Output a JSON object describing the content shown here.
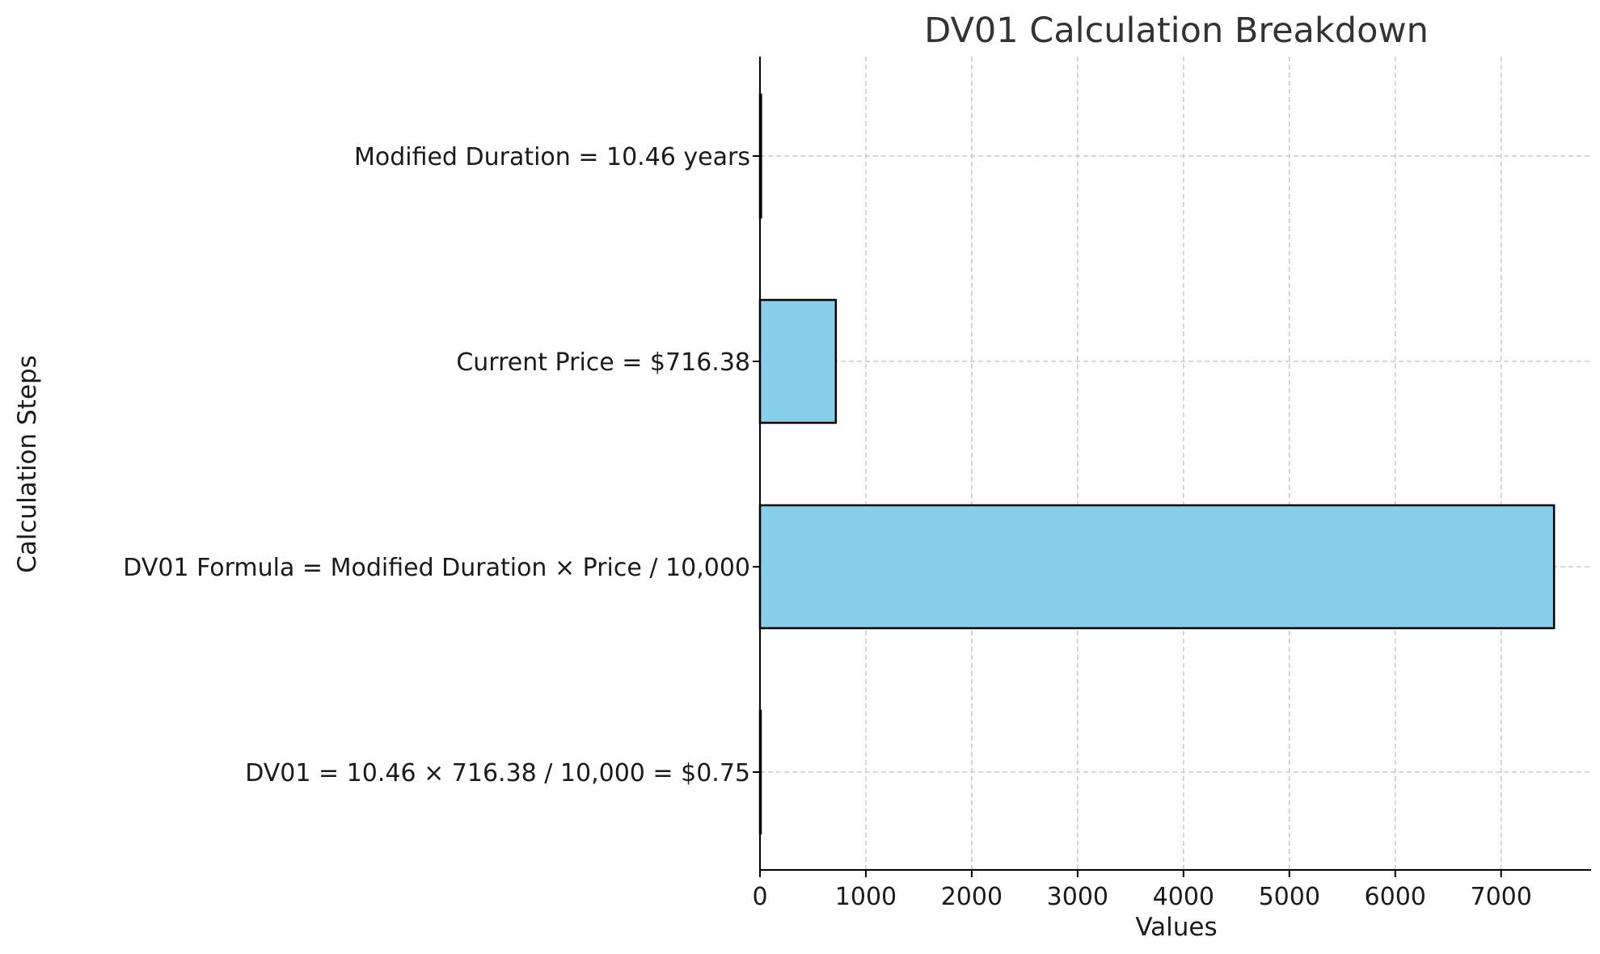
{
  "chart_data": {
    "type": "bar",
    "orientation": "horizontal",
    "title": "DV01 Calculation Breakdown",
    "xlabel": "Values",
    "ylabel": "Calculation Steps",
    "categories": [
      "Modified Duration = 10.46 years",
      "Current Price = $716.38",
      "DV01 Formula = Modified Duration × Price / 10,000",
      "DV01 = 10.46 × 716.38 / 10,000 = $0.75"
    ],
    "values": [
      10.46,
      716.38,
      7500,
      0.75
    ],
    "xlim": [
      0,
      7850
    ],
    "xticks": [
      "0",
      "1000",
      "2000",
      "3000",
      "4000",
      "5000",
      "6000",
      "7000"
    ],
    "xtick_values": [
      0,
      1000,
      2000,
      3000,
      4000,
      5000,
      6000,
      7000
    ],
    "grid": true,
    "bar_color": "#87CEEB",
    "edge_color": "#000000"
  }
}
